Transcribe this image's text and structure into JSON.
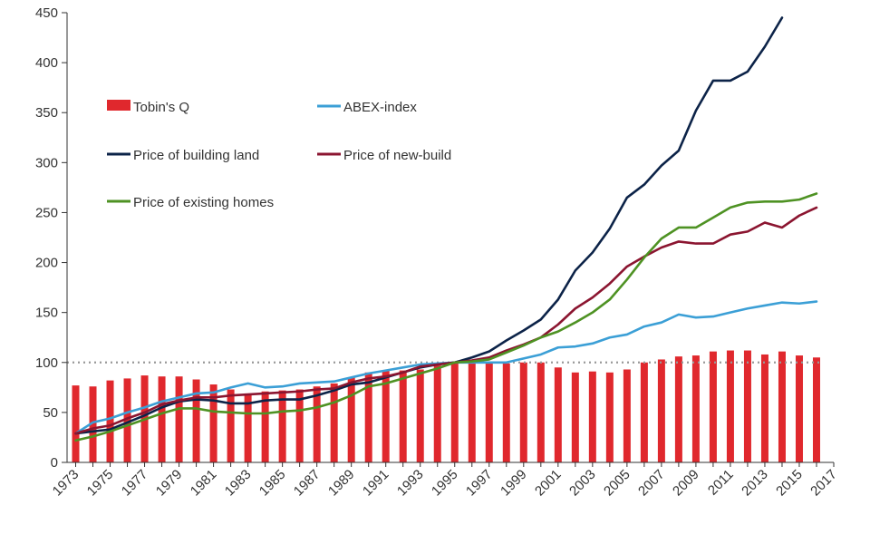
{
  "chart_data": {
    "type": "bar+line",
    "title": "",
    "xlabel": "",
    "ylabel": "",
    "x": [
      1973,
      1974,
      1975,
      1976,
      1977,
      1978,
      1979,
      1980,
      1981,
      1982,
      1983,
      1984,
      1985,
      1986,
      1987,
      1988,
      1989,
      1990,
      1991,
      1992,
      1993,
      1994,
      1995,
      1996,
      1997,
      1998,
      1999,
      2000,
      2001,
      2002,
      2003,
      2004,
      2005,
      2006,
      2007,
      2008,
      2009,
      2010,
      2011,
      2012,
      2013,
      2014,
      2015,
      2016
    ],
    "x_tick_labels": [
      "1973",
      "1975",
      "1977",
      "1979",
      "1981",
      "1983",
      "1985",
      "1987",
      "1989",
      "1991",
      "1993",
      "1995",
      "1997",
      "1999",
      "2001",
      "2003",
      "2005",
      "2007",
      "2009",
      "2011",
      "2013",
      "2015",
      "2017"
    ],
    "xlim": [
      1972.5,
      2017
    ],
    "ylim": [
      0,
      450
    ],
    "y_ticks": [
      0,
      50,
      100,
      150,
      200,
      250,
      300,
      350,
      400,
      450
    ],
    "reference_line": {
      "y": 100,
      "style": "dotted",
      "color": "#999999"
    },
    "grid": false,
    "legend_position": "top-left",
    "series": [
      {
        "name": "Tobin's Q",
        "kind": "bar",
        "color": "#e0282d",
        "values": [
          77,
          76,
          82,
          84,
          87,
          86,
          86,
          83,
          78,
          73,
          69,
          71,
          72,
          73,
          76,
          79,
          85,
          90,
          92,
          92,
          93,
          97,
          99,
          100,
          99,
          99,
          100,
          100,
          95,
          90,
          91,
          90,
          93,
          100,
          103,
          106,
          107,
          111,
          112,
          112,
          108,
          111,
          107,
          105
        ]
      },
      {
        "name": "ABEX-index",
        "kind": "line",
        "color": "#3b9fd6",
        "values": [
          29,
          40,
          44,
          50,
          55,
          61,
          65,
          69,
          70,
          75,
          79,
          75,
          76,
          79,
          80,
          81,
          85,
          89,
          92,
          95,
          98,
          99,
          100,
          100,
          100,
          100,
          104,
          108,
          115,
          116,
          119,
          125,
          128,
          136,
          140,
          148,
          145,
          146,
          150,
          154,
          157,
          160,
          159,
          161
        ]
      },
      {
        "name": "Price of building land",
        "kind": "line",
        "color": "#0c2348",
        "values": [
          29,
          31,
          33,
          40,
          47,
          55,
          61,
          63,
          62,
          59,
          59,
          62,
          63,
          63,
          67,
          72,
          78,
          80,
          85,
          90,
          95,
          98,
          100,
          105,
          111,
          122,
          132,
          143,
          163,
          192,
          210,
          234,
          265,
          278,
          297,
          312,
          352,
          382,
          382,
          391,
          416,
          445,
          null,
          null
        ]
      },
      {
        "name": "Price of new-build",
        "kind": "line",
        "color": "#8b1530",
        "values": [
          29,
          34,
          37,
          44,
          50,
          58,
          62,
          65,
          65,
          67,
          68,
          69,
          70,
          71,
          73,
          74,
          80,
          84,
          86,
          90,
          96,
          98,
          100,
          102,
          105,
          112,
          118,
          125,
          138,
          154,
          165,
          179,
          196,
          206,
          215,
          221,
          219,
          219,
          228,
          231,
          240,
          235,
          247,
          255
        ]
      },
      {
        "name": "Price of existing homes",
        "kind": "line",
        "color": "#4e9223",
        "values": [
          22,
          26,
          31,
          37,
          43,
          49,
          54,
          54,
          51,
          50,
          49,
          49,
          51,
          52,
          55,
          60,
          67,
          76,
          79,
          84,
          89,
          94,
          100,
          101,
          103,
          110,
          117,
          125,
          131,
          140,
          150,
          163,
          183,
          205,
          224,
          235,
          235,
          245,
          255,
          260,
          261,
          261,
          263,
          269
        ]
      }
    ]
  }
}
